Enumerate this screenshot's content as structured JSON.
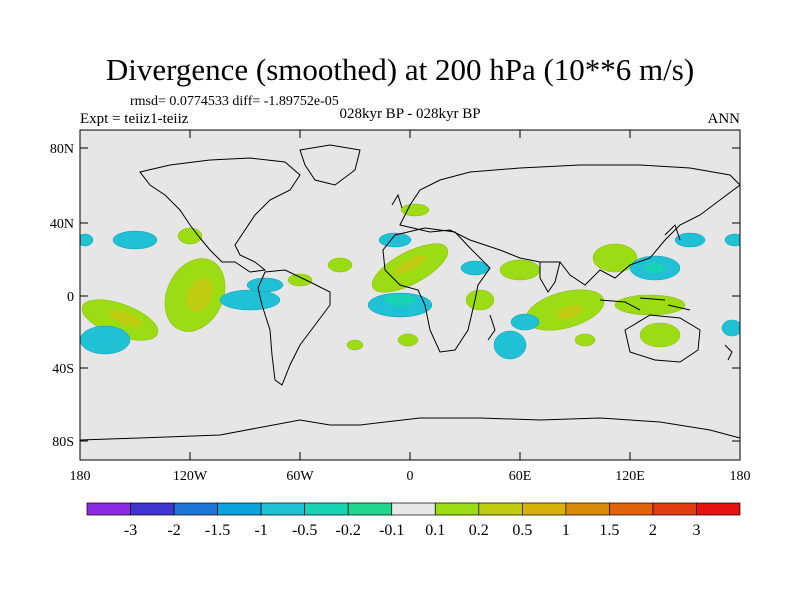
{
  "title": "Divergence (smoothed) at 200 hPa (10**6 m/s)",
  "stats": "rmsd= 0.0774533 diff= -1.89752e-05",
  "experiment": "Expt = teiiz1-teiiz",
  "subtitle": "028kyr BP - 028kyr BP",
  "season": "ANN",
  "lat_labels": [
    "80N",
    "40N",
    "0",
    "40S",
    "80S"
  ],
  "lon_labels": [
    "180",
    "120W",
    "60W",
    "0",
    "60E",
    "120E",
    "180"
  ],
  "colorbar": {
    "labels": [
      "-3",
      "-2",
      "-1.5",
      "-1",
      "-0.5",
      "-0.2",
      "-0.1",
      "0.1",
      "0.2",
      "0.5",
      "1",
      "1.5",
      "2",
      "3"
    ],
    "colors": [
      "#8a2be2",
      "#3f34d0",
      "#1e73d6",
      "#0ea3dc",
      "#20c1d4",
      "#18d2b4",
      "#1fd88d",
      "#e8e8e8",
      "#9bdc14",
      "#c0cc10",
      "#d6b20a",
      "#d98a08",
      "#e0620a",
      "#e03a10",
      "#e81010"
    ]
  },
  "colors": {
    "ocean_land_bg": "#e6e6e6",
    "coast": "#000000"
  }
}
